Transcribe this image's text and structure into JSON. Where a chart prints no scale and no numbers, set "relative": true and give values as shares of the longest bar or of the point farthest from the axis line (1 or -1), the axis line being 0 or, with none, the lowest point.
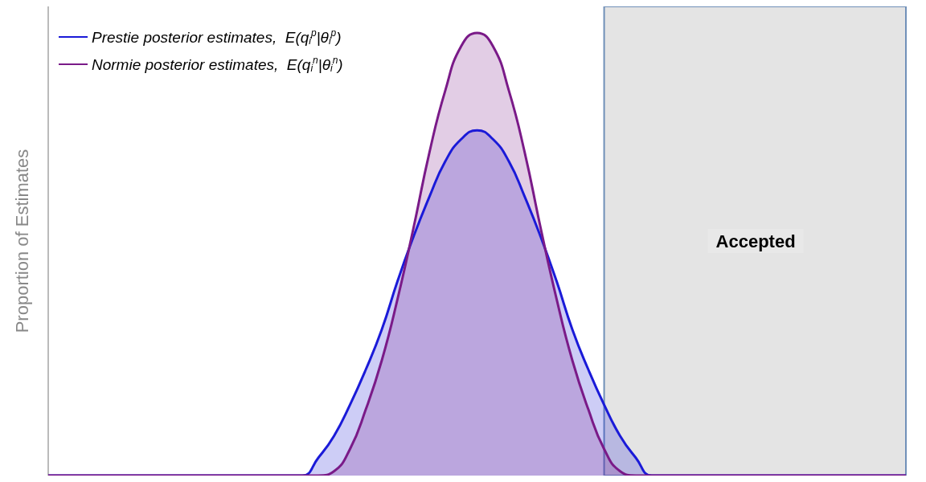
{
  "chart_data": {
    "type": "area",
    "relative": true,
    "ylabel": "Proportion of Estimates",
    "categories": [
      null,
      null,
      null,
      null,
      null,
      null,
      null,
      null,
      null,
      null,
      null,
      null,
      null,
      null,
      null,
      null,
      null,
      null,
      null,
      null,
      null,
      null,
      null,
      null,
      null,
      null,
      null,
      null,
      null,
      null,
      null,
      null,
      null,
      null,
      null,
      null,
      null,
      null,
      null,
      null,
      null,
      null,
      null,
      null,
      null,
      null,
      null,
      null,
      null,
      null,
      null,
      null,
      null,
      null,
      null
    ],
    "series": [
      {
        "name": "Prestie posterior estimates,  E(q$_{i}$$^{p}$|θ$_{i}$$^{p}$)",
        "color": "#1a1ad8",
        "values": [
          0,
          0,
          0,
          0,
          0,
          0,
          0,
          0,
          0,
          0,
          0,
          0,
          0,
          0,
          0,
          0,
          0,
          0.04,
          0.09,
          0.16,
          0.24,
          0.33,
          0.44,
          0.54,
          0.63,
          0.71,
          0.76,
          0.78,
          0.76,
          0.71,
          0.63,
          0.54,
          0.44,
          0.33,
          0.24,
          0.16,
          0.09,
          0.04,
          0,
          0,
          0,
          0,
          0,
          0,
          0,
          0,
          0,
          0,
          0,
          0,
          0,
          0,
          0,
          0,
          0
        ]
      },
      {
        "name": "Normie posterior estimates,  E(q$_{i}$$^{n}$|θ$_{i}$$^{n}$)",
        "color": "#7a1a88",
        "values": [
          0,
          0,
          0,
          0,
          0,
          0,
          0,
          0,
          0,
          0,
          0,
          0,
          0,
          0,
          0,
          0,
          0,
          0,
          0.01,
          0.06,
          0.15,
          0.26,
          0.4,
          0.56,
          0.73,
          0.87,
          0.97,
          1,
          0.97,
          0.87,
          0.73,
          0.56,
          0.4,
          0.26,
          0.15,
          0.06,
          0.01,
          0,
          0,
          0,
          0,
          0,
          0,
          0,
          0,
          0,
          0,
          0,
          0,
          0,
          0,
          0,
          0,
          0,
          0
        ]
      }
    ],
    "annotations": [
      "Accepted"
    ],
    "legend": "top left",
    "grid": false,
    "tick_labels": false
  }
}
